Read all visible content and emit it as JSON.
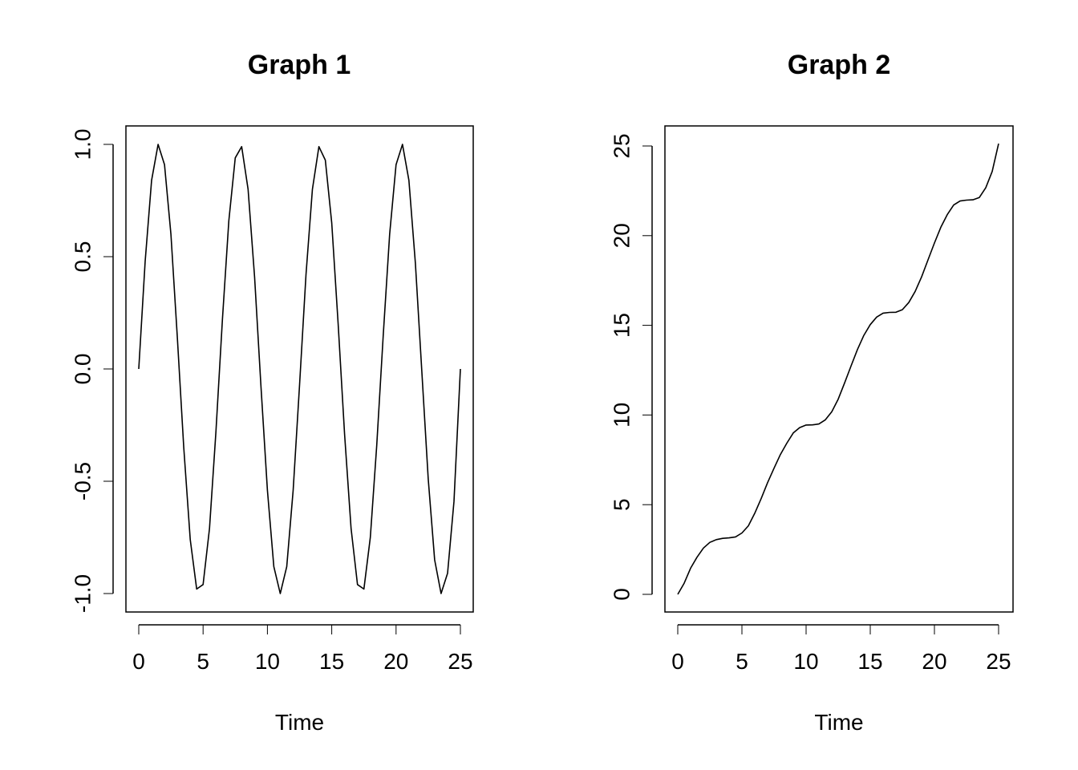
{
  "chart_data": [
    {
      "type": "line",
      "title": "Graph 1",
      "xlabel": "Time",
      "ylabel": "",
      "xlim": [
        0,
        25
      ],
      "ylim": [
        -1.0,
        1.0
      ],
      "x_ticks": [
        0,
        5,
        10,
        15,
        20,
        25
      ],
      "x_tick_labels": [
        "0",
        "5",
        "10",
        "15",
        "20",
        "25"
      ],
      "y_ticks": [
        -1.0,
        -0.5,
        0.0,
        0.5,
        1.0
      ],
      "y_tick_labels": [
        "-1.0",
        "-0.5",
        "0.0",
        "0.5",
        "1.0"
      ],
      "grid": false,
      "line_color": "#000000",
      "series": [
        {
          "x": [
            0.0,
            0.5,
            1.0,
            1.5,
            2.0,
            2.5,
            3.0,
            3.5,
            4.0,
            4.5,
            5.0,
            5.5,
            6.0,
            6.5,
            7.0,
            7.5,
            8.0,
            8.5,
            9.0,
            9.5,
            10.0,
            10.5,
            11.0,
            11.5,
            12.0,
            12.5,
            13.0,
            13.5,
            14.0,
            14.5,
            15.0,
            15.5,
            16.0,
            16.5,
            17.0,
            17.5,
            18.0,
            18.5,
            19.0,
            19.5,
            20.0,
            20.5,
            21.0,
            21.5,
            22.0,
            22.5,
            23.0,
            23.5,
            24.0,
            24.5,
            25.0
          ],
          "values": [
            0.0,
            0.48,
            0.84,
            1.0,
            0.91,
            0.6,
            0.14,
            -0.35,
            -0.76,
            -0.98,
            -0.96,
            -0.71,
            -0.28,
            0.22,
            0.66,
            0.94,
            0.99,
            0.8,
            0.41,
            -0.08,
            -0.54,
            -0.88,
            -1.0,
            -0.88,
            -0.54,
            -0.07,
            0.42,
            0.8,
            0.99,
            0.93,
            0.65,
            0.2,
            -0.29,
            -0.71,
            -0.96,
            -0.98,
            -0.75,
            -0.34,
            0.15,
            0.6,
            0.91,
            1.0,
            0.84,
            0.47,
            -0.01,
            -0.49,
            -0.85,
            -1.0,
            -0.91,
            -0.59,
            0.0
          ]
        }
      ]
    },
    {
      "type": "line",
      "title": "Graph 2",
      "xlabel": "Time",
      "ylabel": "",
      "xlim": [
        0,
        25
      ],
      "ylim": [
        0,
        25
      ],
      "x_ticks": [
        0,
        5,
        10,
        15,
        20,
        25
      ],
      "x_tick_labels": [
        "0",
        "5",
        "10",
        "15",
        "20",
        "25"
      ],
      "y_ticks": [
        0,
        5,
        10,
        15,
        20,
        25
      ],
      "y_tick_labels": [
        "0",
        "5",
        "10",
        "15",
        "20",
        "25"
      ],
      "grid": false,
      "line_color": "#000000",
      "series": [
        {
          "x": [
            0.0,
            0.5,
            1.0,
            1.5,
            2.0,
            2.5,
            3.0,
            3.5,
            4.0,
            4.5,
            5.0,
            5.5,
            6.0,
            6.5,
            7.0,
            7.5,
            8.0,
            8.5,
            9.0,
            9.5,
            10.0,
            10.5,
            11.0,
            11.5,
            12.0,
            12.5,
            13.0,
            13.5,
            14.0,
            14.5,
            15.0,
            15.5,
            16.0,
            16.5,
            17.0,
            17.5,
            18.0,
            18.5,
            19.0,
            19.5,
            20.0,
            20.5,
            21.0,
            21.5,
            22.0,
            22.5,
            23.0,
            23.5,
            24.0,
            24.5,
            25.0
          ],
          "values": [
            0.0,
            0.62,
            1.46,
            2.07,
            2.58,
            2.9,
            3.05,
            3.12,
            3.15,
            3.2,
            3.42,
            3.82,
            4.52,
            5.34,
            6.23,
            7.03,
            7.8,
            8.43,
            9.0,
            9.3,
            9.44,
            9.45,
            9.5,
            9.73,
            10.18,
            10.88,
            11.79,
            12.73,
            13.65,
            14.44,
            15.04,
            15.46,
            15.68,
            15.72,
            15.73,
            15.87,
            16.27,
            16.89,
            17.7,
            18.65,
            19.59,
            20.47,
            21.17,
            21.71,
            21.93,
            21.98,
            22.0,
            22.13,
            22.67,
            23.58,
            25.13
          ]
        }
      ]
    }
  ]
}
